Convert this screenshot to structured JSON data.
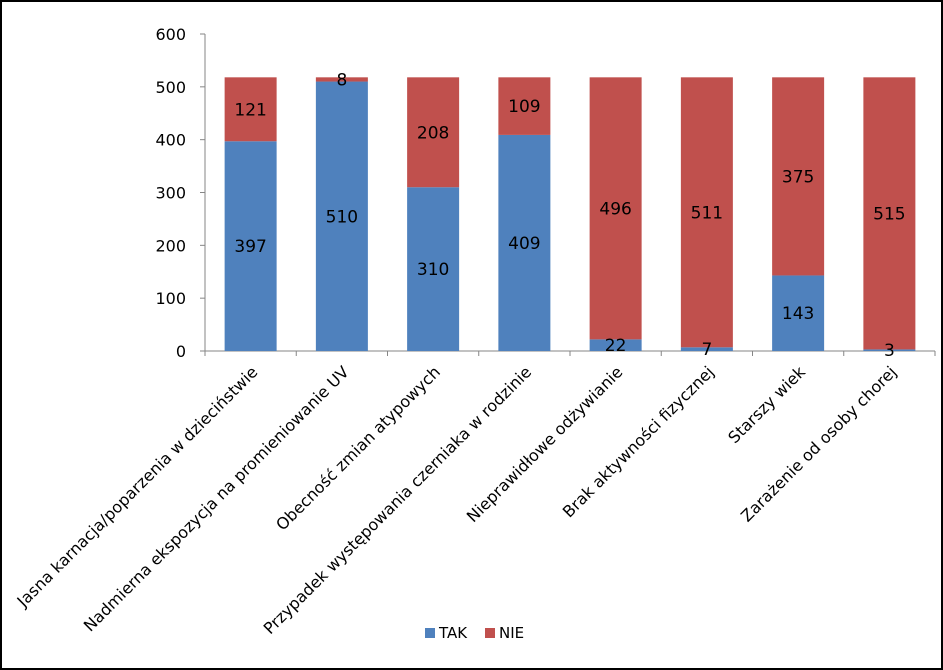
{
  "chart_data": {
    "type": "bar",
    "stacked": true,
    "categories": [
      "Jasna karnacja/poparzenia w dzieciństwie",
      "Nadmierna ekspozycja na promieniowanie UV",
      "Obecność zmian atypowych",
      "Przypadek występowania czerniaka w rodzinie",
      "Nieprawidłowe odżywianie",
      "Brak aktywności fizycznej",
      "Starszy wiek",
      "Zarażenie od osoby chorej"
    ],
    "series": [
      {
        "name": "TAK",
        "color": "#4F81BD",
        "values": [
          397,
          510,
          310,
          409,
          22,
          7,
          143,
          3
        ]
      },
      {
        "name": "NIE",
        "color": "#C0504D",
        "values": [
          121,
          8,
          208,
          109,
          496,
          511,
          375,
          515
        ]
      }
    ],
    "ylim": [
      0,
      600
    ],
    "yticks": [
      "0",
      "100",
      "200",
      "300",
      "400",
      "500",
      "600"
    ],
    "grid": false,
    "legend": "bottom"
  }
}
